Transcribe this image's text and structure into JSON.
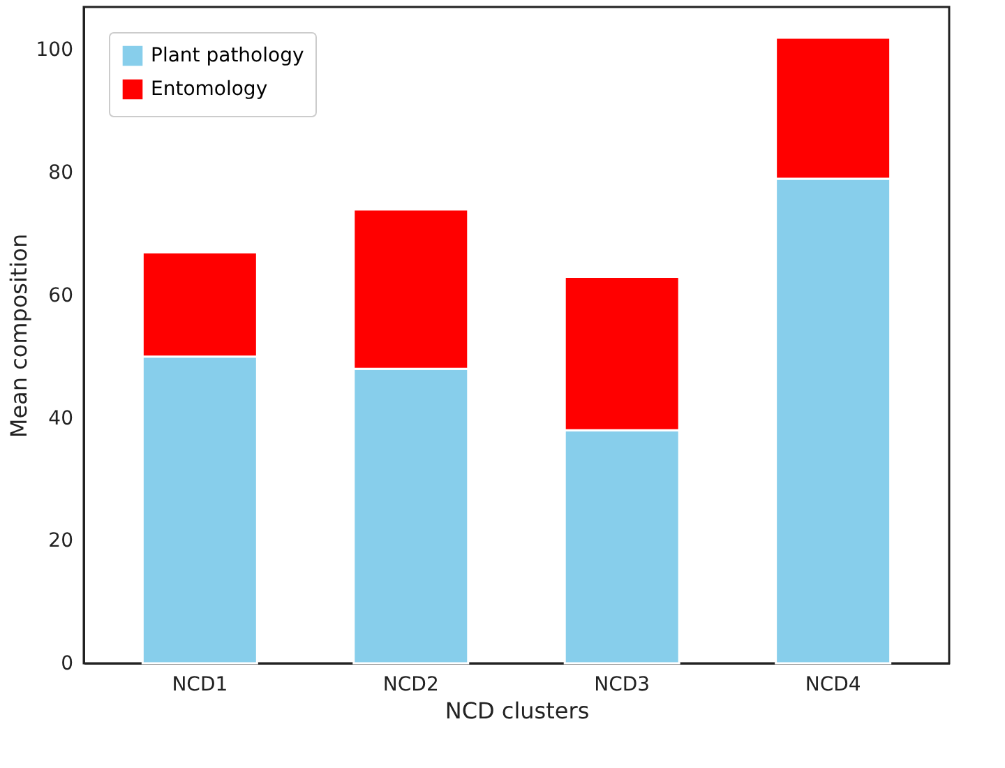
{
  "chart_data": {
    "type": "bar",
    "stacked": true,
    "xlabel": "NCD clusters",
    "ylabel": "Mean composition",
    "categories": [
      "NCD1",
      "NCD2",
      "NCD3",
      "NCD4"
    ],
    "series": [
      {
        "name": "Plant pathology",
        "color": "#87ceeb",
        "values": [
          50,
          48,
          38,
          79
        ]
      },
      {
        "name": "Entomology",
        "color": "#ff0000",
        "values": [
          17,
          26,
          25,
          23
        ]
      }
    ],
    "ylim": [
      0,
      107
    ],
    "yticks": [
      0,
      20,
      40,
      60,
      80,
      100
    ],
    "grid": false,
    "legend": "top left"
  }
}
